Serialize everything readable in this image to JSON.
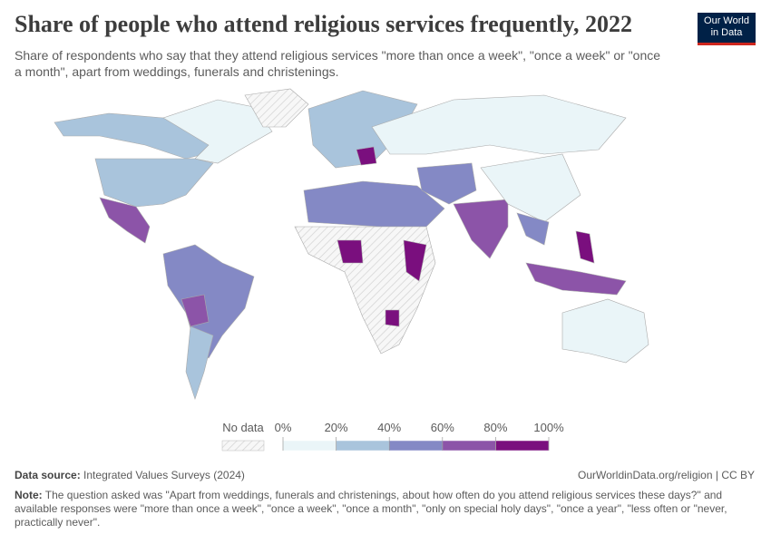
{
  "header": {
    "title": "Share of people who attend religious services frequently, 2022",
    "subtitle": "Share of respondents who say that they attend religious services \"more than once a week\", \"once a week\" or \"once a month\", apart from weddings, funerals and christenings.",
    "logo": "Our World in Data"
  },
  "chart_data": {
    "type": "map",
    "legend": {
      "no_data_label": "No data",
      "ticks": [
        {
          "value": 0,
          "label": "0%"
        },
        {
          "value": 20,
          "label": "20%"
        },
        {
          "value": 40,
          "label": "40%"
        },
        {
          "value": 60,
          "label": "60%"
        },
        {
          "value": 80,
          "label": "80%"
        },
        {
          "value": 100,
          "label": "100%"
        }
      ],
      "colors": [
        "#eaf5f8",
        "#a9c4dc",
        "#8489c5",
        "#8c54a8",
        "#7a0f7e"
      ]
    }
  },
  "footer": {
    "source_label": "Data source:",
    "source": "Integrated Values Surveys (2024)",
    "url": "OurWorldinData.org/religion | CC BY",
    "note_label": "Note:",
    "note": "The question asked was \"Apart from weddings, funerals and christenings, about how often do you attend religious services these days?\" and available responses were \"more than once a week\", \"once a week\", \"once a month\", \"only on special holy days\", \"once a year\", \"less often or \"never, practically never\"."
  }
}
